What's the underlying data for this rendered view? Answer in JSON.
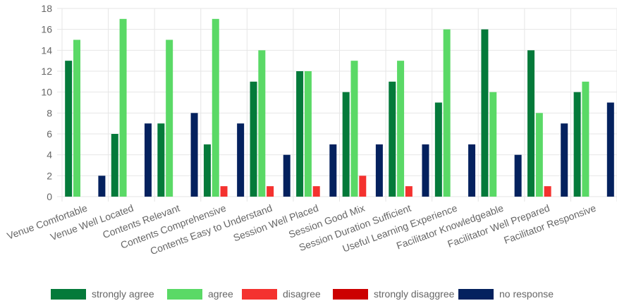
{
  "chart_data": {
    "type": "bar",
    "categories": [
      "Venue Comfortable",
      "Venue Well Located",
      "Contents Relevant",
      "Contents Comprehensive",
      "Contents Easy to Understand",
      "Session Well Placed",
      "Session Good Mix",
      "Session Duration Sufficient",
      "Useful Learning Experience",
      "Facilitator Knowledgeable",
      "Facilitator Well Prepared",
      "Facilitator Responsive"
    ],
    "series": [
      {
        "name": "strongly agree",
        "color": "#047a3a",
        "values": [
          13,
          6,
          7,
          5,
          11,
          12,
          10,
          11,
          9,
          16,
          14,
          10
        ]
      },
      {
        "name": "agree",
        "color": "#5ad966",
        "values": [
          15,
          17,
          15,
          17,
          14,
          12,
          13,
          13,
          16,
          10,
          8,
          11
        ]
      },
      {
        "name": "disagree",
        "color": "#f4322f",
        "values": [
          0,
          0,
          0,
          1,
          1,
          1,
          2,
          1,
          0,
          0,
          1,
          0
        ]
      },
      {
        "name": "strongly disaggree",
        "color": "#cc0000",
        "values": [
          0,
          0,
          0,
          0,
          0,
          0,
          0,
          0,
          0,
          0,
          0,
          0
        ]
      },
      {
        "name": "no response",
        "color": "#04215e",
        "values": [
          2,
          7,
          8,
          7,
          4,
          5,
          5,
          5,
          5,
          4,
          7,
          9
        ]
      }
    ],
    "ylim": [
      0,
      18
    ],
    "yticks": [
      0,
      2,
      4,
      6,
      8,
      10,
      12,
      14,
      16,
      18
    ],
    "grid": true,
    "legend_position": "bottom"
  }
}
